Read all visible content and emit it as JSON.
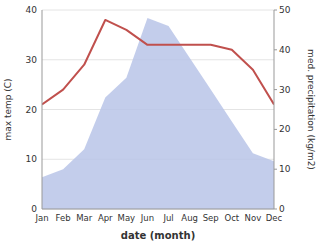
{
  "chart_data": {
    "type": "line",
    "categories": [
      "Jan",
      "Feb",
      "Mar",
      "Apr",
      "May",
      "Jun",
      "Jul",
      "Aug",
      "Sep",
      "Oct",
      "Nov",
      "Dec"
    ],
    "xlabel": "date (month)",
    "ylabel": "max temp (C)",
    "y2label": "med. precipitation (kg/m2)",
    "series": [
      {
        "type": "area",
        "axis": "y2",
        "color": "#b8c4e8",
        "values": [
          8,
          10,
          15,
          28,
          33,
          48,
          46,
          38,
          30,
          22,
          14,
          12
        ]
      },
      {
        "type": "line",
        "color": "#c0504d",
        "values": [
          21,
          24,
          29,
          38,
          36,
          33,
          33,
          33,
          33,
          32,
          28,
          21
        ]
      }
    ],
    "ylim": [
      0,
      40
    ],
    "yticks": [
      0,
      10,
      20,
      30,
      40
    ],
    "y2lim": [
      0,
      50
    ],
    "y2ticks": [
      0,
      10,
      20,
      30,
      40,
      50
    ],
    "grid": true
  }
}
